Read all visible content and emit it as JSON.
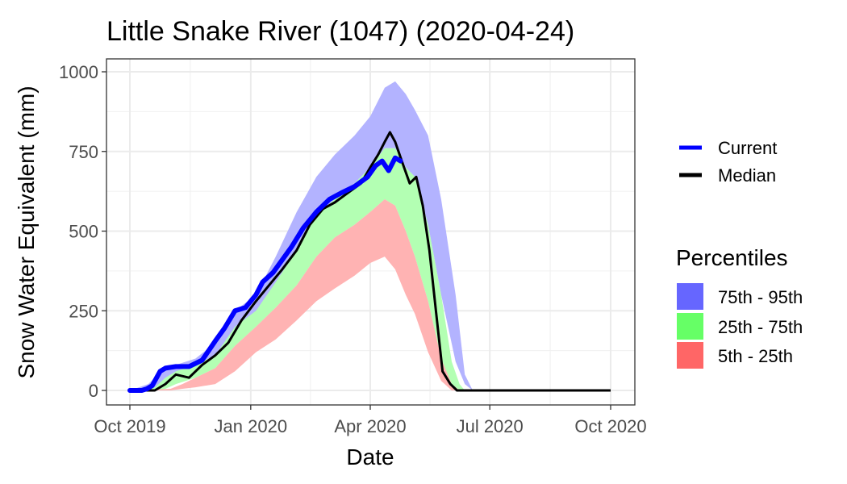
{
  "chart_data": {
    "type": "line",
    "title": "Little Snake River (1047) (2020-04-24)",
    "xlabel": "Date",
    "ylabel": "Snow Water Equivalent (mm)",
    "xlim": [
      "2019-10-01",
      "2020-10-01"
    ],
    "ylim": [
      0,
      1000
    ],
    "x_ticks": [
      "Oct 2019",
      "Jan 2020",
      "Apr 2020",
      "Jul 2020",
      "Oct 2020"
    ],
    "x_tick_dates": [
      "2019-10-01",
      "2020-01-01",
      "2020-04-01",
      "2020-07-01",
      "2020-10-01"
    ],
    "y_ticks": [
      0,
      250,
      500,
      750,
      1000
    ],
    "grid": true,
    "legend_position": "right",
    "colors": {
      "current": "#0000ff",
      "median": "#000000",
      "p75_95": "#b3b3ff",
      "p25_75": "#b3ffb3",
      "p5_25": "#ffb3b3",
      "p75_95_key": "#6666ff",
      "p25_75_key": "#66ff66",
      "p5_25_key": "#ff6666"
    },
    "series": [
      {
        "name": "Current",
        "dates": [
          "2019-10-01",
          "2019-10-10",
          "2019-10-14",
          "2019-10-18",
          "2019-10-24",
          "2019-10-28",
          "2019-11-05",
          "2019-11-15",
          "2019-11-25",
          "2019-12-05",
          "2019-12-12",
          "2019-12-20",
          "2019-12-28",
          "2020-01-05",
          "2020-01-10",
          "2020-01-18",
          "2020-01-25",
          "2020-02-01",
          "2020-02-10",
          "2020-02-20",
          "2020-03-01",
          "2020-03-10",
          "2020-03-20",
          "2020-03-30",
          "2020-04-05",
          "2020-04-10",
          "2020-04-15",
          "2020-04-20",
          "2020-04-24"
        ],
        "values": [
          0,
          0,
          5,
          15,
          60,
          70,
          75,
          75,
          95,
          155,
          195,
          250,
          260,
          300,
          340,
          370,
          410,
          450,
          510,
          560,
          600,
          620,
          640,
          670,
          705,
          720,
          690,
          730,
          720
        ]
      },
      {
        "name": "Median",
        "dates": [
          "2019-10-01",
          "2019-10-20",
          "2019-10-28",
          "2019-11-05",
          "2019-11-15",
          "2019-11-25",
          "2019-12-05",
          "2019-12-15",
          "2019-12-25",
          "2020-01-05",
          "2020-01-15",
          "2020-01-25",
          "2020-02-05",
          "2020-02-15",
          "2020-02-25",
          "2020-03-05",
          "2020-03-15",
          "2020-03-25",
          "2020-04-01",
          "2020-04-07",
          "2020-04-12",
          "2020-04-16",
          "2020-04-20",
          "2020-04-25",
          "2020-05-01",
          "2020-05-06",
          "2020-05-11",
          "2020-05-16",
          "2020-05-21",
          "2020-05-26",
          "2020-06-01",
          "2020-06-06",
          "2020-06-10",
          "2020-10-01"
        ],
        "values": [
          0,
          0,
          20,
          50,
          40,
          80,
          110,
          150,
          220,
          280,
          330,
          380,
          440,
          520,
          570,
          590,
          620,
          650,
          700,
          740,
          780,
          810,
          780,
          720,
          650,
          670,
          580,
          440,
          250,
          60,
          20,
          0,
          0,
          0
        ]
      }
    ],
    "bands": [
      {
        "name": "75th - 95th",
        "dates": [
          "2019-10-01",
          "2019-10-15",
          "2019-10-25",
          "2019-11-05",
          "2019-11-20",
          "2019-12-05",
          "2019-12-20",
          "2020-01-05",
          "2020-01-20",
          "2020-02-05",
          "2020-02-20",
          "2020-03-05",
          "2020-03-20",
          "2020-04-01",
          "2020-04-12",
          "2020-04-20",
          "2020-04-28",
          "2020-05-05",
          "2020-05-15",
          "2020-05-25",
          "2020-06-05",
          "2020-06-12",
          "2020-06-18",
          "2020-10-01"
        ],
        "lower": [
          0,
          0,
          10,
          40,
          60,
          100,
          170,
          240,
          330,
          440,
          550,
          600,
          650,
          700,
          760,
          760,
          700,
          670,
          520,
          300,
          90,
          20,
          0,
          0
        ],
        "upper": [
          0,
          20,
          60,
          80,
          100,
          150,
          250,
          300,
          420,
          560,
          670,
          740,
          800,
          860,
          950,
          970,
          930,
          880,
          800,
          600,
          300,
          50,
          0,
          0
        ]
      },
      {
        "name": "25th - 75th",
        "dates": [
          "2019-10-01",
          "2019-10-20",
          "2019-10-28",
          "2019-11-05",
          "2019-11-20",
          "2019-12-05",
          "2019-12-20",
          "2020-01-05",
          "2020-01-20",
          "2020-02-05",
          "2020-02-20",
          "2020-03-05",
          "2020-03-20",
          "2020-04-01",
          "2020-04-12",
          "2020-04-20",
          "2020-04-28",
          "2020-05-05",
          "2020-05-15",
          "2020-05-25",
          "2020-06-02",
          "2020-06-08",
          "2020-06-12",
          "2020-10-01"
        ],
        "lower": [
          0,
          0,
          5,
          20,
          40,
          70,
          140,
          200,
          260,
          330,
          420,
          480,
          520,
          560,
          600,
          580,
          500,
          420,
          280,
          100,
          20,
          0,
          0,
          0
        ],
        "upper": [
          0,
          10,
          40,
          60,
          80,
          110,
          200,
          250,
          340,
          440,
          550,
          600,
          650,
          700,
          760,
          760,
          700,
          670,
          520,
          300,
          90,
          20,
          0,
          0
        ]
      },
      {
        "name": "5th - 25th",
        "dates": [
          "2019-10-01",
          "2019-11-01",
          "2019-11-10",
          "2019-11-20",
          "2019-12-05",
          "2019-12-20",
          "2020-01-05",
          "2020-01-20",
          "2020-02-05",
          "2020-02-20",
          "2020-03-05",
          "2020-03-20",
          "2020-04-01",
          "2020-04-12",
          "2020-04-20",
          "2020-04-28",
          "2020-05-05",
          "2020-05-15",
          "2020-05-25",
          "2020-06-02",
          "2020-06-08",
          "2020-10-01"
        ],
        "lower": [
          0,
          0,
          5,
          10,
          20,
          60,
          120,
          160,
          220,
          280,
          320,
          360,
          400,
          420,
          380,
          300,
          240,
          120,
          30,
          0,
          0,
          0
        ],
        "upper": [
          0,
          5,
          20,
          40,
          70,
          140,
          200,
          260,
          330,
          420,
          480,
          520,
          560,
          600,
          580,
          500,
          420,
          280,
          100,
          20,
          0,
          0
        ]
      }
    ],
    "legend": {
      "lines": [
        "Current",
        "Median"
      ],
      "percentiles_title": "Percentiles",
      "percentiles": [
        "75th - 95th",
        "25th - 75th",
        "5th - 25th"
      ]
    }
  }
}
